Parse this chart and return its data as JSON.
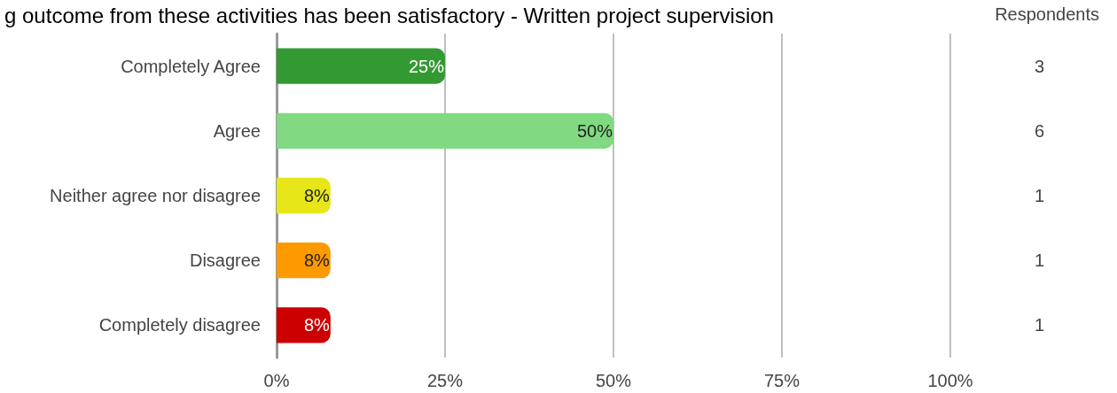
{
  "chart_data": {
    "type": "bar",
    "orientation": "horizontal",
    "title": "g outcome from these activities has been satisfactory - Written project supervision",
    "categories": [
      "Completely Agree",
      "Agree",
      "Neither agree nor disagree",
      "Disagree",
      "Completely disagree"
    ],
    "values": [
      25,
      50,
      8,
      8,
      8
    ],
    "colors": [
      "#339933",
      "#81d981",
      "#e6e619",
      "#ff9900",
      "#cc0000"
    ],
    "xlim": [
      0,
      100
    ],
    "xticks": [
      {
        "value": 0,
        "label": "0%"
      },
      {
        "value": 25,
        "label": "25%"
      },
      {
        "value": 50,
        "label": "50%"
      },
      {
        "value": 75,
        "label": "75%"
      },
      {
        "value": 100,
        "label": "100%"
      }
    ],
    "value_labels": [
      "25%",
      "50%",
      "8%",
      "8%",
      "8%"
    ],
    "y2label": "Respondents",
    "y2_categories": [
      "3",
      "6",
      "1",
      "1",
      "1"
    ],
    "grid": "x"
  }
}
